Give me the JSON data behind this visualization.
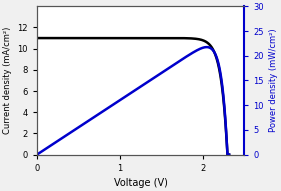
{
  "title": "",
  "xlabel": "Voltage (V)",
  "ylabel_left": "Current density (mA/cm²)",
  "ylabel_right": "Power density (mW/cm²)",
  "jsc": 11.0,
  "voc": 2.3,
  "xlim": [
    0,
    2.5
  ],
  "ylim_left": [
    0,
    14
  ],
  "ylim_right": [
    0,
    30
  ],
  "yticks_left": [
    0,
    2,
    4,
    6,
    8,
    10,
    12
  ],
  "yticks_right": [
    0,
    5,
    10,
    15,
    20,
    25,
    30
  ],
  "xticks": [
    0,
    1,
    2
  ],
  "line_color_jv": "#000000",
  "line_color_pw": "#0000cc",
  "bg_color": "#f0f0f0",
  "plot_bg": "#ffffff",
  "linewidth": 1.8,
  "spine_color_right": "#0000cc",
  "spine_color_axes": "#555555",
  "Vt": 0.075
}
